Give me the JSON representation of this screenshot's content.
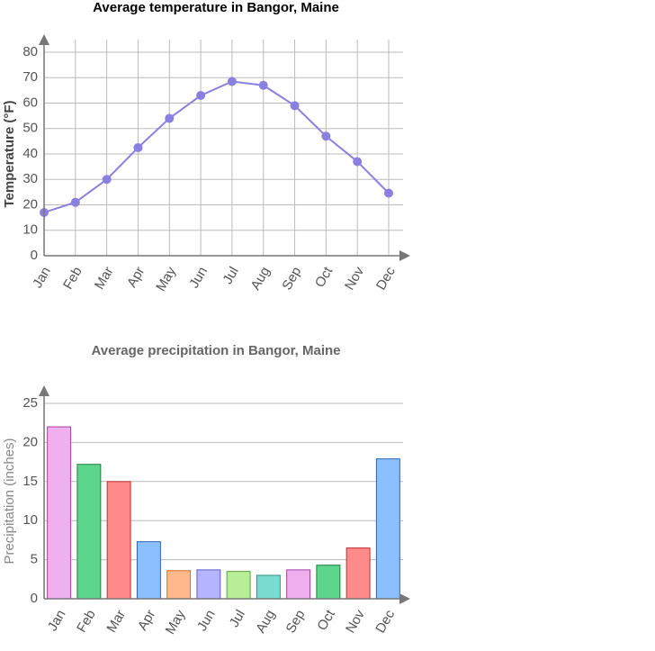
{
  "chart_data": [
    {
      "type": "line",
      "title": "Average temperature in Bangor, Maine",
      "ylabel": "Temperature (°F)",
      "categories": [
        "Jan",
        "Feb",
        "Mar",
        "Apr",
        "May",
        "Jun",
        "Jul",
        "Aug",
        "Sep",
        "Oct",
        "Nov",
        "Dec"
      ],
      "values": [
        17,
        21,
        30,
        42.5,
        54,
        63,
        68.5,
        67,
        59,
        47,
        37,
        24.6
      ],
      "color": "#8a80e0",
      "ylim": [
        0,
        80
      ],
      "yticks": [
        0,
        10,
        20,
        30,
        40,
        50,
        60,
        70,
        80
      ],
      "grid": true
    },
    {
      "type": "bar",
      "title": "Average precipitation in Bangor, Maine",
      "ylabel": "Precipitation (inches)",
      "categories": [
        "Jan",
        "Feb",
        "Mar",
        "Apr",
        "May",
        "Jun",
        "Jul",
        "Aug",
        "Sep",
        "Oct",
        "Nov",
        "Dec"
      ],
      "values": [
        22,
        17.2,
        15,
        7.3,
        3.6,
        3.7,
        3.5,
        3,
        3.7,
        4.3,
        6.5,
        17.9
      ],
      "colors": [
        "#f0b0f0",
        "#5cd68a",
        "#ff8a8a",
        "#8ac0ff",
        "#ffb88a",
        "#b4b4ff",
        "#b8ee98",
        "#7adcd0",
        "#f0b0f0",
        "#5cd68a",
        "#ff8a8a",
        "#8ac0ff"
      ],
      "edgecolors": [
        "#a040a0",
        "#208040",
        "#c03030",
        "#3060b0",
        "#d07030",
        "#6060c0",
        "#60a040",
        "#309080",
        "#a040a0",
        "#208040",
        "#c03030",
        "#3060b0"
      ],
      "ylim": [
        0,
        25
      ],
      "yticks": [
        0,
        5,
        10,
        15,
        20,
        25
      ],
      "grid": true
    }
  ]
}
